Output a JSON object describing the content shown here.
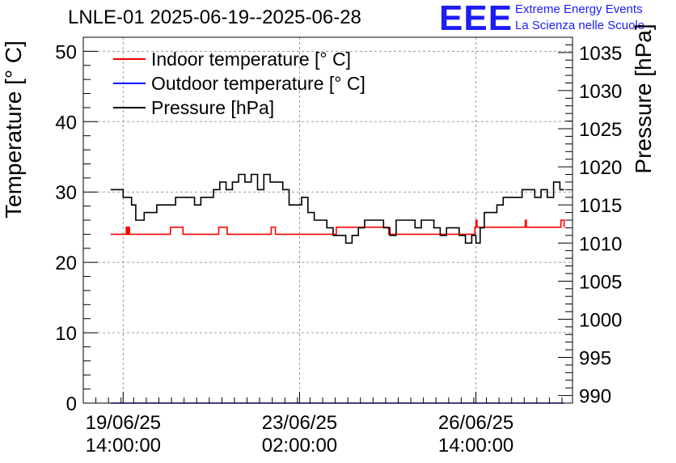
{
  "header": {
    "title": "LNLE-01 2025-06-19--2025-06-28",
    "logo_text": "EEE",
    "logo_line1": "Extreme Energy Events",
    "logo_line2": "La Scienza nelle Scuole"
  },
  "chart_data": {
    "type": "line",
    "ylabel": "Temperature [° C]",
    "y2label": "Pressure [hPa]",
    "ylim": [
      0,
      52
    ],
    "y2lim": [
      989,
      1037
    ],
    "yticks": [
      "0",
      "10",
      "20",
      "30",
      "40",
      "50"
    ],
    "y2ticks": [
      "990",
      "995",
      "1000",
      "1005",
      "1010",
      "1015",
      "1020",
      "1025",
      "1030",
      "1035"
    ],
    "xlim": [
      "2025-06-18 19:00",
      "2025-06-28 12:00"
    ],
    "xticks": [
      {
        "date": "19/06/25",
        "time": "14:00:00"
      },
      {
        "date": "23/06/25",
        "time": "02:00:00"
      },
      {
        "date": "26/06/25",
        "time": "14:00:00"
      }
    ],
    "grid": true,
    "legend_position": "top-left",
    "series": [
      {
        "name": "Indoor temperature [° C]",
        "axis": "left",
        "color": "#ff0000",
        "x": [
          "2025-06-19 08:00",
          "2025-06-19 15:00",
          "2025-06-19 15:30",
          "2025-06-19 16:00",
          "2025-06-19 16:30",
          "2025-06-19 17:00",
          "2025-06-20 12:00",
          "2025-06-20 12:30",
          "2025-06-20 18:00",
          "2025-06-20 18:30",
          "2025-06-21 11:00",
          "2025-06-21 11:30",
          "2025-06-21 15:00",
          "2025-06-21 15:30",
          "2025-06-22 12:00",
          "2025-06-22 12:30",
          "2025-06-22 14:00",
          "2025-06-22 14:30",
          "2025-06-23 19:00",
          "2025-06-23 19:30",
          "2025-06-24 20:00",
          "2025-06-24 20:30",
          "2025-06-26 13:30",
          "2025-06-26 14:00",
          "2025-06-26 14:30",
          "2025-06-27 13:00",
          "2025-06-27 13:30",
          "2025-06-27 14:00",
          "2025-06-28 06:00",
          "2025-06-28 06:30",
          "2025-06-28 08:00"
        ],
        "values": [
          24,
          24,
          25,
          24,
          25,
          24,
          24,
          25,
          25,
          24,
          24,
          25,
          25,
          24,
          24,
          25,
          25,
          24,
          24,
          25,
          25,
          24,
          25,
          26,
          25,
          25,
          26,
          25,
          25,
          26,
          25
        ]
      },
      {
        "name": "Outdoor temperature [° C]",
        "axis": "left",
        "color": "#0000ff",
        "x": [
          "2025-06-19 08:00",
          "2025-06-28 08:00"
        ],
        "values": [
          0,
          0
        ]
      },
      {
        "name": "Pressure [hPa]",
        "axis": "right",
        "color": "#000000",
        "x": [
          "2025-06-19 08:00",
          "2025-06-19 12:00",
          "2025-06-19 14:00",
          "2025-06-19 16:00",
          "2025-06-19 18:00",
          "2025-06-19 20:00",
          "2025-06-19 22:00",
          "2025-06-20 00:00",
          "2025-06-20 03:00",
          "2025-06-20 06:00",
          "2025-06-20 09:00",
          "2025-06-20 12:00",
          "2025-06-20 15:00",
          "2025-06-20 18:00",
          "2025-06-20 21:00",
          "2025-06-21 00:00",
          "2025-06-21 03:00",
          "2025-06-21 06:00",
          "2025-06-21 09:00",
          "2025-06-21 12:00",
          "2025-06-21 15:00",
          "2025-06-21 18:00",
          "2025-06-21 21:00",
          "2025-06-22 00:00",
          "2025-06-22 03:00",
          "2025-06-22 06:00",
          "2025-06-22 09:00",
          "2025-06-22 12:00",
          "2025-06-22 15:00",
          "2025-06-22 18:00",
          "2025-06-22 21:00",
          "2025-06-23 00:00",
          "2025-06-23 03:00",
          "2025-06-23 06:00",
          "2025-06-23 09:00",
          "2025-06-23 12:00",
          "2025-06-23 15:00",
          "2025-06-23 18:00",
          "2025-06-23 21:00",
          "2025-06-24 00:00",
          "2025-06-24 03:00",
          "2025-06-24 06:00",
          "2025-06-24 09:00",
          "2025-06-24 12:00",
          "2025-06-24 15:00",
          "2025-06-24 18:00",
          "2025-06-24 21:00",
          "2025-06-25 00:00",
          "2025-06-25 03:00",
          "2025-06-25 06:00",
          "2025-06-25 09:00",
          "2025-06-25 12:00",
          "2025-06-25 15:00",
          "2025-06-25 18:00",
          "2025-06-25 21:00",
          "2025-06-26 00:00",
          "2025-06-26 03:00",
          "2025-06-26 06:00",
          "2025-06-26 09:00",
          "2025-06-26 12:00",
          "2025-06-26 14:00",
          "2025-06-26 16:00",
          "2025-06-26 18:00",
          "2025-06-26 21:00",
          "2025-06-27 00:00",
          "2025-06-27 03:00",
          "2025-06-27 06:00",
          "2025-06-27 09:00",
          "2025-06-27 12:00",
          "2025-06-27 15:00",
          "2025-06-27 18:00",
          "2025-06-27 21:00",
          "2025-06-28 00:00",
          "2025-06-28 03:00",
          "2025-06-28 06:00",
          "2025-06-28 08:00"
        ],
        "values": [
          1017,
          1017,
          1016,
          1016,
          1015,
          1013,
          1013,
          1014,
          1014,
          1015,
          1015,
          1015,
          1016,
          1016,
          1016,
          1015,
          1016,
          1016,
          1017,
          1018,
          1017,
          1018,
          1019,
          1018,
          1019,
          1017,
          1019,
          1018,
          1018,
          1017,
          1015,
          1015,
          1016,
          1014,
          1013,
          1013,
          1012,
          1011,
          1011,
          1010,
          1011,
          1012,
          1013,
          1013,
          1013,
          1012,
          1011,
          1013,
          1013,
          1013,
          1012,
          1013,
          1013,
          1012,
          1011,
          1012,
          1012,
          1011,
          1010,
          1011,
          1010,
          1012,
          1014,
          1014,
          1015,
          1016,
          1016,
          1016,
          1017,
          1017,
          1016,
          1017,
          1016,
          1018,
          1017,
          1017
        ]
      }
    ]
  }
}
